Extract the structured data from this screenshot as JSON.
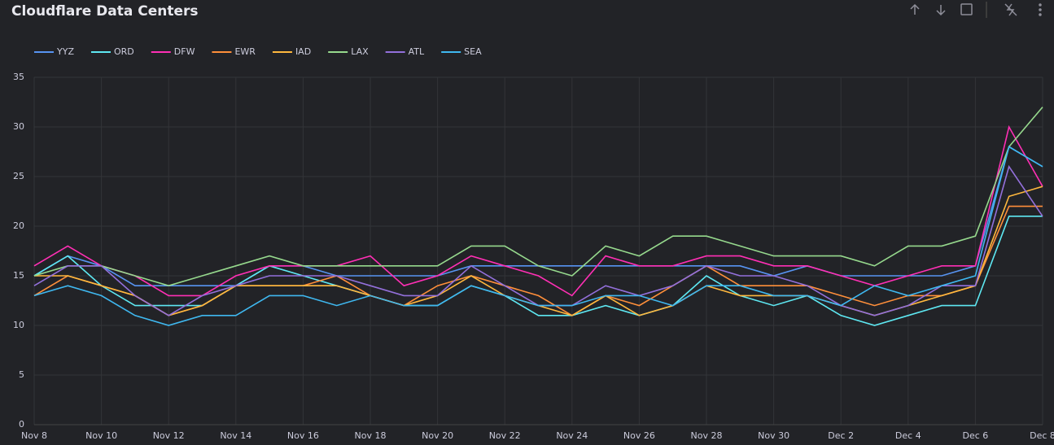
{
  "chart_data": {
    "type": "line",
    "title": "Cloudflare Data Centers",
    "categories": [
      "Nov 8",
      null,
      "Nov 10",
      null,
      "Nov 12",
      null,
      "Nov 14",
      null,
      "Nov 16",
      null,
      "Nov 18",
      null,
      "Nov 20",
      null,
      "Nov 22",
      null,
      "Nov 24",
      null,
      "Nov 26",
      null,
      "Nov 28",
      null,
      "Nov 30",
      null,
      "Dec 2",
      null,
      "Dec 4",
      null,
      "Dec 6",
      null,
      "Dec 8"
    ],
    "ylim": [
      0,
      35
    ],
    "yticks": [
      0,
      5,
      10,
      15,
      20,
      25,
      30,
      35
    ],
    "grid": true,
    "legend": "top",
    "series": [
      {
        "name": "YYZ",
        "color": "#5794f2",
        "values": [
          15,
          17,
          16,
          14,
          14,
          14,
          14,
          16,
          16,
          15,
          15,
          15,
          15,
          16,
          16,
          16,
          16,
          16,
          16,
          16,
          16,
          16,
          15,
          16,
          15,
          15,
          15,
          15,
          16,
          28,
          26
        ]
      },
      {
        "name": "ORD",
        "color": "#5ee8f2",
        "values": [
          15,
          17,
          14,
          12,
          12,
          12,
          14,
          16,
          15,
          14,
          13,
          12,
          12,
          14,
          13,
          11,
          11,
          12,
          11,
          12,
          15,
          13,
          12,
          13,
          11,
          10,
          11,
          12,
          12,
          21,
          21
        ]
      },
      {
        "name": "DFW",
        "color": "#ff2fb5",
        "values": [
          16,
          18,
          16,
          15,
          13,
          13,
          15,
          16,
          16,
          16,
          17,
          14,
          15,
          17,
          16,
          15,
          13,
          17,
          16,
          16,
          17,
          17,
          16,
          16,
          15,
          14,
          15,
          16,
          16,
          30,
          24
        ]
      },
      {
        "name": "EWR",
        "color": "#ff8f3a",
        "values": [
          13,
          15,
          14,
          13,
          11,
          12,
          14,
          14,
          14,
          15,
          13,
          12,
          14,
          15,
          14,
          13,
          11,
          13,
          12,
          14,
          16,
          14,
          14,
          14,
          13,
          12,
          13,
          13,
          14,
          22,
          22
        ]
      },
      {
        "name": "IAD",
        "color": "#ffb83e",
        "values": [
          15,
          15,
          14,
          13,
          11,
          12,
          14,
          14,
          14,
          14,
          13,
          12,
          13,
          15,
          13,
          12,
          11,
          13,
          11,
          12,
          14,
          13,
          13,
          13,
          12,
          11,
          12,
          13,
          14,
          23,
          24
        ]
      },
      {
        "name": "LAX",
        "color": "#96d98d",
        "values": [
          15,
          16,
          16,
          15,
          14,
          15,
          16,
          17,
          16,
          16,
          16,
          16,
          16,
          18,
          18,
          16,
          15,
          18,
          17,
          19,
          19,
          18,
          17,
          17,
          17,
          16,
          18,
          18,
          19,
          28,
          32
        ]
      },
      {
        "name": "ATL",
        "color": "#9370db",
        "values": [
          14,
          16,
          16,
          13,
          11,
          13,
          14,
          15,
          15,
          15,
          14,
          13,
          13,
          16,
          14,
          12,
          12,
          14,
          13,
          14,
          16,
          15,
          15,
          14,
          12,
          11,
          12,
          14,
          14,
          26,
          21
        ]
      },
      {
        "name": "SEA",
        "color": "#3fb8f0",
        "values": [
          13,
          14,
          13,
          11,
          10,
          11,
          11,
          13,
          13,
          12,
          13,
          12,
          12,
          14,
          13,
          12,
          12,
          13,
          13,
          12,
          14,
          14,
          13,
          13,
          12,
          14,
          13,
          14,
          15,
          28,
          26
        ]
      }
    ]
  }
}
